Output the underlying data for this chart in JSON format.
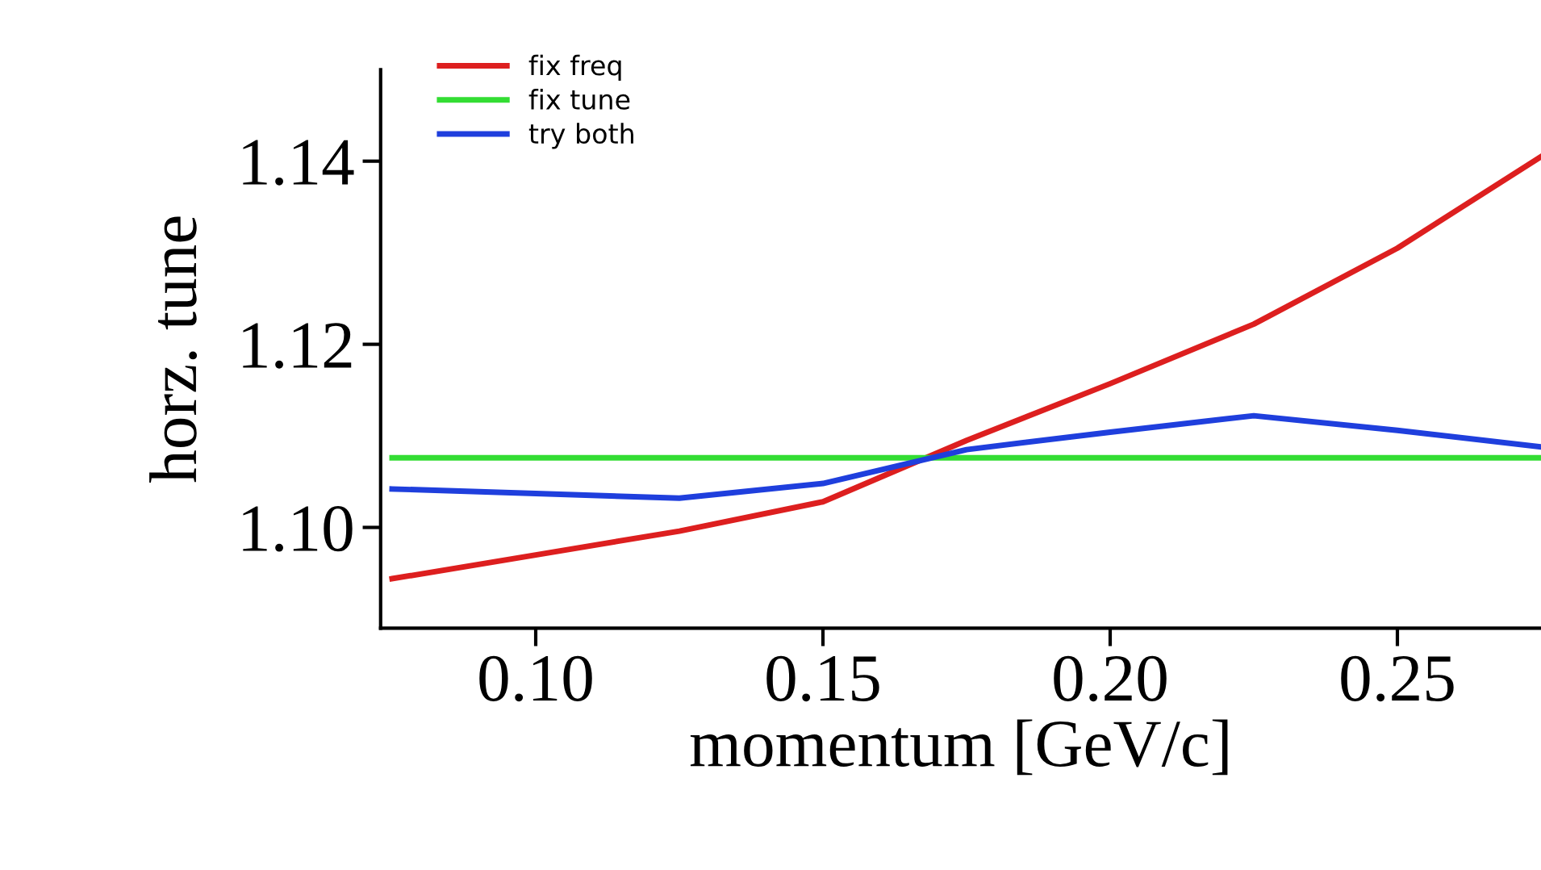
{
  "chart_data": {
    "type": "line",
    "xlabel": "momentum [GeV/c]",
    "ylabel": "horz. tune",
    "x": [
      0.075,
      0.1,
      0.125,
      0.15,
      0.175,
      0.2,
      0.225,
      0.25,
      0.275
    ],
    "series": [
      {
        "name": "fix freq",
        "color": "#dd1f1f",
        "values": [
          1.0944,
          1.097,
          1.0996,
          1.1028,
          1.1095,
          1.1157,
          1.1222,
          1.1305,
          1.1405
        ]
      },
      {
        "name": "fix tune",
        "color": "#33dd33",
        "values": [
          1.1076,
          1.1076,
          1.1076,
          1.1076,
          1.1076,
          1.1076,
          1.1076,
          1.1076,
          1.1076
        ]
      },
      {
        "name": "try both",
        "color": "#1f3fdd",
        "values": [
          1.1042,
          1.1037,
          1.1032,
          1.1048,
          1.1085,
          1.1104,
          1.1122,
          1.1106,
          1.1088
        ]
      }
    ],
    "xlim": [
      0.073,
      0.275
    ],
    "ylim": [
      1.089,
      1.15
    ],
    "xticks": [
      {
        "value": 0.1,
        "label": "0.10"
      },
      {
        "value": 0.15,
        "label": "0.15"
      },
      {
        "value": 0.2,
        "label": "0.20"
      },
      {
        "value": 0.25,
        "label": "0.25"
      }
    ],
    "yticks": [
      {
        "value": 1.1,
        "label": "1.10"
      },
      {
        "value": 1.12,
        "label": "1.12"
      },
      {
        "value": 1.14,
        "label": "1.14"
      }
    ],
    "legend": "top left",
    "grid": false
  }
}
